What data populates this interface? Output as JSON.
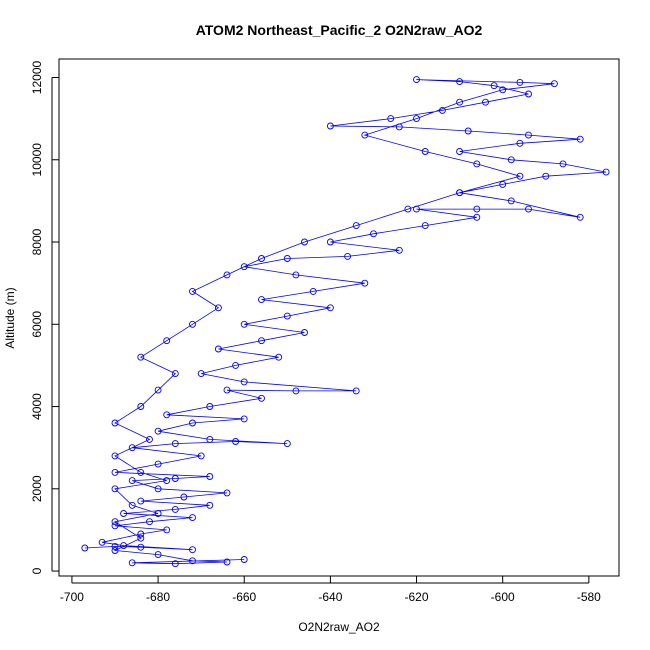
{
  "chart_data": {
    "type": "scatter",
    "title": "ATOM2 Northeast_Pacific_2 O2N2raw_AO2",
    "xlabel": "O2N2raw_AO2",
    "ylabel": "Altitude (m)",
    "xlim": [
      -703,
      -573
    ],
    "ylim": [
      -120,
      12450
    ],
    "xticks": [
      -700,
      -680,
      -660,
      -640,
      -620,
      -600,
      -580
    ],
    "yticks": [
      0,
      2000,
      4000,
      6000,
      8000,
      10000,
      12000
    ],
    "point_color": "#0000ff",
    "line_color": "#0000ff",
    "marker": "open-circle",
    "connected": true,
    "grid": false,
    "series": [
      {
        "name": "",
        "points": [
          [
            -697,
            560
          ],
          [
            -690,
            600
          ],
          [
            -684,
            580
          ],
          [
            -672,
            520
          ],
          [
            -688,
            620
          ],
          [
            -693,
            700
          ],
          [
            -684,
            900
          ],
          [
            -678,
            1000
          ],
          [
            -690,
            1100
          ],
          [
            -682,
            1200
          ],
          [
            -672,
            1300
          ],
          [
            -688,
            1400
          ],
          [
            -676,
            1500
          ],
          [
            -668,
            1600
          ],
          [
            -684,
            1700
          ],
          [
            -674,
            1800
          ],
          [
            -664,
            1900
          ],
          [
            -680,
            2000
          ],
          [
            -686,
            2200
          ],
          [
            -676,
            2250
          ],
          [
            -668,
            2300
          ],
          [
            -690,
            2400
          ],
          [
            -680,
            2600
          ],
          [
            -670,
            2800
          ],
          [
            -686,
            3000
          ],
          [
            -676,
            3100
          ],
          [
            -662,
            3150
          ],
          [
            -650,
            3100
          ],
          [
            -668,
            3200
          ],
          [
            -680,
            3400
          ],
          [
            -672,
            3600
          ],
          [
            -660,
            3700
          ],
          [
            -678,
            3800
          ],
          [
            -668,
            4000
          ],
          [
            -656,
            4200
          ],
          [
            -664,
            4400
          ],
          [
            -648,
            4380
          ],
          [
            -634,
            4380
          ],
          [
            -660,
            4600
          ],
          [
            -670,
            4800
          ],
          [
            -662,
            5000
          ],
          [
            -652,
            5200
          ],
          [
            -666,
            5400
          ],
          [
            -656,
            5600
          ],
          [
            -646,
            5800
          ],
          [
            -660,
            6000
          ],
          [
            -650,
            6200
          ],
          [
            -640,
            6400
          ],
          [
            -656,
            6600
          ],
          [
            -644,
            6800
          ],
          [
            -632,
            7000
          ],
          [
            -648,
            7200
          ],
          [
            -660,
            7400
          ],
          [
            -650,
            7600
          ],
          [
            -636,
            7650
          ],
          [
            -624,
            7800
          ],
          [
            -640,
            8000
          ],
          [
            -630,
            8200
          ],
          [
            -618,
            8400
          ],
          [
            -606,
            8600
          ],
          [
            -620,
            8800
          ],
          [
            -606,
            8800
          ],
          [
            -594,
            8800
          ],
          [
            -582,
            8600
          ],
          [
            -598,
            9000
          ],
          [
            -610,
            9200
          ],
          [
            -600,
            9400
          ],
          [
            -590,
            9600
          ],
          [
            -576,
            9700
          ],
          [
            -586,
            9900
          ],
          [
            -598,
            10000
          ],
          [
            -610,
            10200
          ],
          [
            -596,
            10400
          ],
          [
            -582,
            10500
          ],
          [
            -594,
            10600
          ],
          [
            -608,
            10700
          ],
          [
            -624,
            10800
          ],
          [
            -640,
            10820
          ],
          [
            -626,
            11000
          ],
          [
            -614,
            11200
          ],
          [
            -604,
            11400
          ],
          [
            -594,
            11600
          ],
          [
            -602,
            11800
          ],
          [
            -610,
            11900
          ],
          [
            -620,
            11950
          ],
          [
            -596,
            11880
          ],
          [
            -588,
            11850
          ],
          [
            -600,
            11700
          ],
          [
            -610,
            11400
          ],
          [
            -620,
            11000
          ],
          [
            -632,
            10600
          ],
          [
            -618,
            10200
          ],
          [
            -606,
            9900
          ],
          [
            -596,
            9600
          ],
          [
            -610,
            9200
          ],
          [
            -622,
            8800
          ],
          [
            -634,
            8400
          ],
          [
            -646,
            8000
          ],
          [
            -656,
            7600
          ],
          [
            -664,
            7200
          ],
          [
            -672,
            6800
          ],
          [
            -666,
            6400
          ],
          [
            -672,
            6000
          ],
          [
            -678,
            5600
          ],
          [
            -684,
            5200
          ],
          [
            -676,
            4800
          ],
          [
            -680,
            4400
          ],
          [
            -684,
            4000
          ],
          [
            -690,
            3600
          ],
          [
            -682,
            3200
          ],
          [
            -690,
            2800
          ],
          [
            -684,
            2400
          ],
          [
            -678,
            2200
          ],
          [
            -690,
            2000
          ],
          [
            -686,
            1600
          ],
          [
            -680,
            1400
          ],
          [
            -690,
            1200
          ],
          [
            -684,
            800
          ],
          [
            -690,
            500
          ],
          [
            -680,
            400
          ],
          [
            -672,
            250
          ],
          [
            -664,
            220
          ],
          [
            -676,
            180
          ],
          [
            -686,
            200
          ],
          [
            -660,
            280
          ]
        ]
      }
    ]
  }
}
